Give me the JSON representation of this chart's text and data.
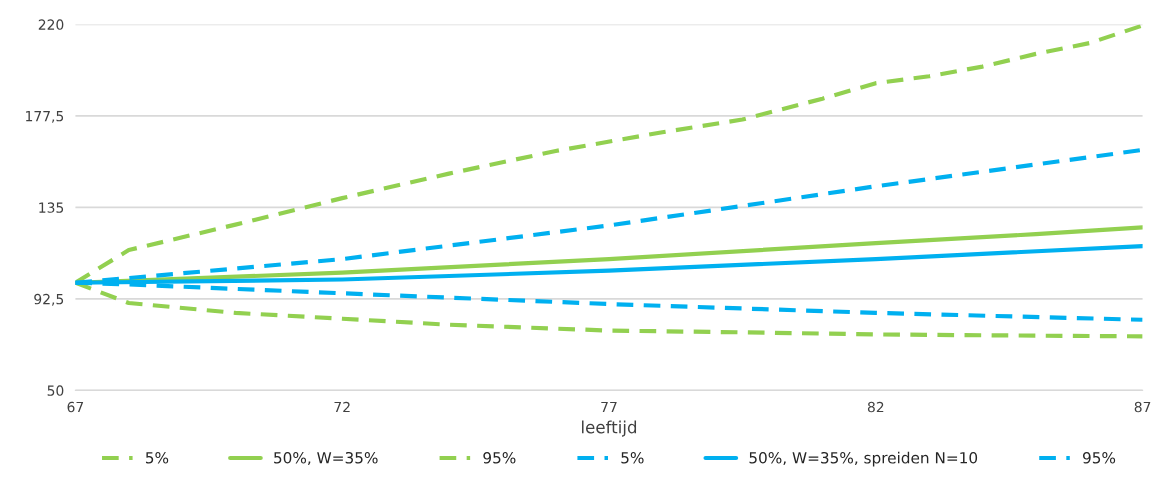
{
  "chart_data": {
    "type": "line",
    "xlabel": "leeftijd",
    "xlim": [
      67,
      87
    ],
    "xticks": [
      67,
      72,
      77,
      82,
      87
    ],
    "ylim": [
      50,
      220
    ],
    "yticks": [
      50,
      {
        "value": 92.5,
        "label": "92,5"
      },
      135,
      {
        "value": 177.5,
        "label": "177,5"
      },
      220
    ],
    "grid": "y",
    "legend": "bottom",
    "series": [
      {
        "name": "5%",
        "color": "#92d050",
        "line_style": "dashed",
        "x": [
          67,
          68,
          70,
          72,
          74,
          77,
          80,
          82,
          84,
          87
        ],
        "values": [
          100,
          90.6,
          86,
          83.3,
          80.5,
          77.8,
          76.8,
          76,
          75.6,
          75.1
        ]
      },
      {
        "name": "50%, W=35%",
        "color": "#92d050",
        "line_style": "solid",
        "x": [
          67,
          72,
          77,
          82,
          85,
          87
        ],
        "values": [
          100,
          104.7,
          111,
          118.4,
          122.6,
          125.7
        ]
      },
      {
        "name": "95%",
        "color": "#92d050",
        "line_style": "dashed",
        "x": [
          67,
          68,
          70,
          72,
          74,
          76,
          78,
          79.5,
          81,
          82,
          83,
          84,
          85,
          86,
          87
        ],
        "values": [
          100,
          115.2,
          127,
          139.3,
          150.7,
          161.2,
          169.9,
          175.8,
          185.5,
          192.7,
          195.9,
          200.4,
          206.3,
          211.3,
          219.5
        ]
      },
      {
        "name": "5%",
        "color": "#00b0f0",
        "line_style": "dashed",
        "x": [
          67,
          68,
          72,
          77,
          82,
          87
        ],
        "values": [
          100,
          99.2,
          95.1,
          90.1,
          86,
          82.8
        ]
      },
      {
        "name": "50%, W=35%, spreiden N=10",
        "color": "#00b0f0",
        "line_style": "solid",
        "x": [
          67,
          72,
          77,
          82,
          87
        ],
        "values": [
          100,
          101.5,
          105.6,
          111,
          117
        ]
      },
      {
        "name": "95%",
        "color": "#00b0f0",
        "line_style": "dashed",
        "x": [
          67,
          72,
          77,
          80,
          82,
          87
        ],
        "values": [
          100,
          111,
          126.6,
          137.5,
          144.8,
          161.7
        ]
      }
    ]
  }
}
